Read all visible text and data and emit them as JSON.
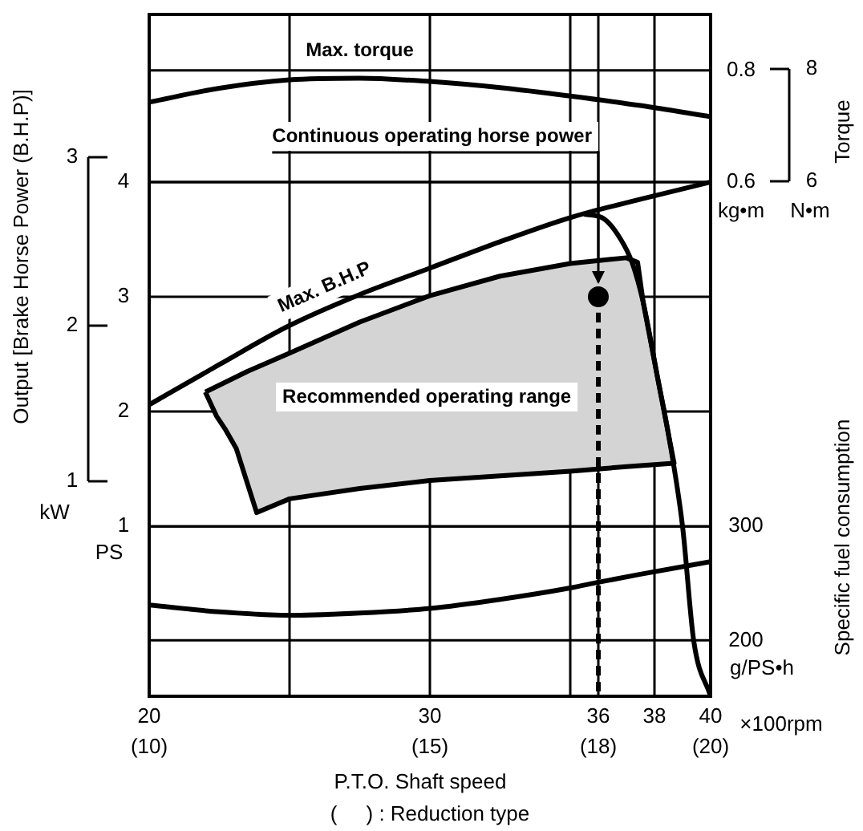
{
  "chart_data": {
    "type": "line",
    "ylabel": "Output [Brake Horse Power (B.H.P)]",
    "y2label": "Torque",
    "y3label": "Specific fuel consumption",
    "xlabel": "P.T.O. Shaft speed",
    "xlim": [
      20,
      40
    ],
    "xticks": [
      20,
      {
        "value": 25,
        "label": null
      },
      30,
      {
        "value": 35,
        "label": null
      },
      36,
      38,
      40
    ],
    "x2lim": [
      10,
      20
    ],
    "x2ticks": [
      {
        "value": 10,
        "label": "(10)"
      },
      {
        "value": 15,
        "label": "(15)"
      },
      {
        "value": 18,
        "label": "(18)"
      },
      {
        "value": 20,
        "label": "(20)"
      }
    ],
    "ylim": [
      -0.48,
      5.46
    ],
    "yticks": [
      1,
      2,
      3,
      4
    ],
    "y2lim": [
      -0.32,
      0.9
    ],
    "y2ticks": [
      0.6,
      0.8
    ],
    "y3lim": [
      151,
      749
    ],
    "y3ticks": [
      200,
      300
    ],
    "grid": true,
    "series": [
      {
        "name": "Max. torque",
        "color": "#000000",
        "axis": "y2",
        "x": [
          20,
          22.5,
          25,
          27.5,
          30,
          32.5,
          35,
          37.5,
          40
        ],
        "values": [
          0.743,
          0.768,
          0.783,
          0.786,
          0.78,
          0.769,
          0.754,
          0.737,
          0.717
        ]
      },
      {
        "name": "Max. B.H.P",
        "color": "#000000",
        "x": [
          20,
          22.5,
          25,
          27.5,
          30,
          32.5,
          35,
          37.5,
          40
        ],
        "values": [
          2.06,
          2.41,
          2.75,
          3.02,
          3.25,
          3.48,
          3.69,
          3.85,
          4.0
        ]
      },
      {
        "color": "#000000",
        "x": [
          35.5,
          36.2,
          36.8,
          37.2,
          37.6,
          38.1,
          38.5,
          39.0,
          39.4,
          40
        ],
        "values": [
          3.72,
          3.68,
          3.5,
          3.3,
          2.95,
          2.31,
          1.8,
          1.0,
          0.0,
          -0.48
        ]
      },
      {
        "name": "Recommended operating range",
        "type": "area",
        "color": "#d4d4d4",
        "x": [
          22.0,
          23.5,
          25,
          27.5,
          30,
          32.5,
          35,
          37.0,
          37.4,
          37.6,
          38.1,
          38.5,
          38.7,
          37,
          35,
          32.5,
          30,
          27.5,
          25,
          23.83,
          23.4,
          23.1,
          22.7,
          22.4,
          22.0
        ],
        "values": [
          2.17,
          2.35,
          2.51,
          2.78,
          3.01,
          3.18,
          3.29,
          3.34,
          3.3,
          2.95,
          2.31,
          1.8,
          1.55,
          1.52,
          1.48,
          1.44,
          1.4,
          1.33,
          1.24,
          1.12,
          1.45,
          1.68,
          1.85,
          1.96,
          2.17
        ]
      },
      {
        "color": "#000000",
        "axis": "y3",
        "x": [
          20,
          22.5,
          25,
          27.5,
          30,
          32.5,
          35,
          36,
          37.5,
          40
        ],
        "values": [
          231,
          225,
          222,
          224,
          228,
          236,
          246,
          251,
          258,
          269
        ]
      },
      {
        "type": "scatter",
        "color": "#000000",
        "x": [
          36
        ],
        "values": [
          3
        ]
      },
      {
        "color": "#000000",
        "line_style": "dashed",
        "x": [
          36,
          36
        ],
        "values": [
          3,
          -0.48
        ]
      }
    ],
    "annotations": [
      "PS",
      "kW",
      "kg•m",
      "N•m",
      "g/PS•h",
      "×100rpm",
      "(     ) : Reduction type",
      "1",
      "2",
      "3",
      "8",
      "6",
      {
        "text": "Continuous operating horse power",
        "x": 36,
        "y": 3
      }
    ]
  }
}
